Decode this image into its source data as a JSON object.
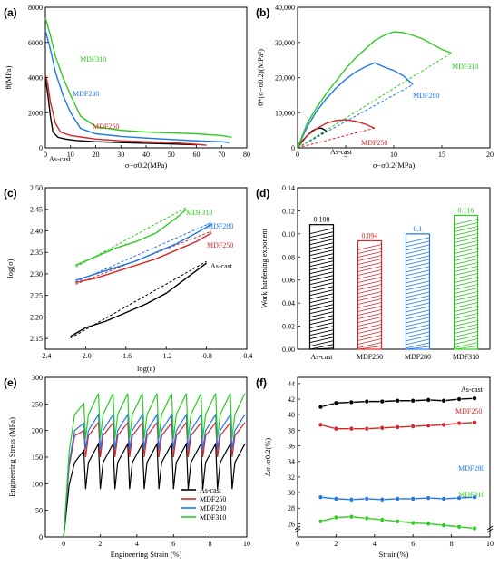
{
  "colors": {
    "As-cast": "#000000",
    "MDF250": "#d62728",
    "MDF280": "#1f77e8",
    "MDF310": "#2ecc1f"
  },
  "chart_data": [
    {
      "panel": "(a)",
      "type": "line",
      "xlabel": "σ−σ0.2(MPa)",
      "ylabel": "θ(MPa)",
      "xlim": [
        0,
        80
      ],
      "ylim": [
        0,
        8000
      ],
      "xticks": [
        "0",
        "10",
        "20",
        "30",
        "40",
        "50",
        "60",
        "70",
        "80"
      ],
      "yticks": [
        "0",
        "2000",
        "4000",
        "6000",
        "8000"
      ],
      "annotations": [
        "MDF310",
        "MDF280",
        "MDF250",
        "As-cast"
      ],
      "series": [
        {
          "name": "As-cast",
          "x": [
            0,
            1,
            2,
            3,
            5,
            8,
            12,
            20,
            30,
            40,
            50,
            60
          ],
          "y": [
            4000,
            3000,
            1800,
            900,
            600,
            500,
            420,
            350,
            300,
            260,
            220,
            180
          ]
        },
        {
          "name": "MDF250",
          "x": [
            0,
            1,
            2,
            4,
            6,
            10,
            15,
            20,
            30,
            40,
            50,
            60,
            64
          ],
          "y": [
            4200,
            3600,
            2600,
            1400,
            900,
            700,
            600,
            500,
            400,
            350,
            300,
            200,
            150
          ]
        },
        {
          "name": "MDF280",
          "x": [
            0,
            2,
            4,
            7,
            10,
            14,
            20,
            30,
            40,
            50,
            60,
            70,
            73
          ],
          "y": [
            6700,
            5600,
            4300,
            3000,
            2000,
            1100,
            800,
            650,
            560,
            480,
            400,
            350,
            300
          ]
        },
        {
          "name": "MDF310",
          "x": [
            0,
            2,
            4,
            7,
            10,
            14,
            20,
            30,
            40,
            50,
            60,
            70,
            74
          ],
          "y": [
            7400,
            6400,
            5200,
            4000,
            3000,
            1800,
            1200,
            1000,
            900,
            850,
            800,
            700,
            600
          ]
        }
      ]
    },
    {
      "panel": "(b)",
      "type": "line",
      "xlabel": "σ−σ0.2(MPa)",
      "ylabel": "θ*(σ−σ0.2)(MPa²)",
      "xlim": [
        0,
        20
      ],
      "ylim": [
        0,
        40000
      ],
      "xticks": [
        "0",
        "5",
        "10",
        "15",
        "20"
      ],
      "yticks": [
        "0",
        "10,000",
        "20,000",
        "30,000",
        "40,000"
      ],
      "annotations": [
        "MDF310",
        "MDF280",
        "MDF250",
        "As-cast"
      ],
      "series": [
        {
          "name": "As-cast",
          "x": [
            0,
            0.5,
            1,
            1.5,
            2,
            2.5,
            3
          ],
          "y": [
            0,
            2000,
            3500,
            4800,
            5500,
            5600,
            4800
          ]
        },
        {
          "name": "MDF250",
          "x": [
            0,
            1,
            2,
            3,
            4,
            5,
            6,
            7,
            8
          ],
          "y": [
            0,
            3500,
            5500,
            7000,
            7800,
            8000,
            7600,
            6800,
            5600
          ]
        },
        {
          "name": "MDF280",
          "x": [
            0,
            1,
            2,
            3,
            4,
            5,
            6,
            7,
            8,
            9,
            10,
            11,
            12
          ],
          "y": [
            0,
            6000,
            10500,
            14000,
            17000,
            19500,
            21500,
            23000,
            24200,
            23000,
            22000,
            20500,
            18000
          ]
        },
        {
          "name": "MDF310",
          "x": [
            0,
            1,
            2,
            3,
            4,
            5,
            6,
            7,
            8,
            9,
            10,
            11,
            12,
            13,
            14,
            15,
            16
          ],
          "y": [
            0,
            7000,
            11500,
            15500,
            19000,
            22500,
            25500,
            28000,
            30500,
            32000,
            33000,
            32800,
            32000,
            31000,
            29500,
            28000,
            27000
          ]
        }
      ]
    },
    {
      "panel": "(c)",
      "type": "line",
      "xlabel": "log(ε)",
      "ylabel": "log(σ)",
      "xlim": [
        -2.4,
        -0.4
      ],
      "ylim": [
        2.125,
        2.5
      ],
      "xticks": [
        "-2.4",
        "-2.0",
        "-1.6",
        "-1.2",
        "-0.8",
        "-0.4"
      ],
      "yticks": [
        "2.15",
        "2.20",
        "2.25",
        "2.30",
        "2.35",
        "2.40",
        "2.45",
        "2.50"
      ],
      "annotations": [
        "MDF310",
        "MDF280",
        "MDF250",
        "As-cast"
      ],
      "series": [
        {
          "name": "As-cast",
          "x": [
            -2.15,
            -2.0,
            -1.8,
            -1.6,
            -1.4,
            -1.2,
            -1.0,
            -0.8
          ],
          "y": [
            2.155,
            2.175,
            2.19,
            2.21,
            2.23,
            2.255,
            2.29,
            2.325
          ]
        },
        {
          "name": "MDF250",
          "x": [
            -2.1,
            -1.9,
            -1.7,
            -1.5,
            -1.3,
            -1.1,
            -0.9,
            -0.75
          ],
          "y": [
            2.28,
            2.29,
            2.305,
            2.32,
            2.335,
            2.355,
            2.375,
            2.395
          ]
        },
        {
          "name": "MDF280",
          "x": [
            -2.1,
            -1.9,
            -1.7,
            -1.5,
            -1.3,
            -1.1,
            -0.9,
            -0.75
          ],
          "y": [
            2.285,
            2.3,
            2.315,
            2.33,
            2.35,
            2.37,
            2.395,
            2.415
          ]
        },
        {
          "name": "MDF310",
          "x": [
            -2.1,
            -1.9,
            -1.7,
            -1.5,
            -1.3,
            -1.1,
            -1.0
          ],
          "y": [
            2.32,
            2.34,
            2.36,
            2.375,
            2.395,
            2.43,
            2.45
          ]
        }
      ]
    },
    {
      "panel": "(d)",
      "type": "bar",
      "ylabel": "Work hardening exponent",
      "ylim": [
        0,
        0.14
      ],
      "yticks": [
        "0.00",
        "0.02",
        "0.04",
        "0.06",
        "0.08",
        "0.10",
        "0.12",
        "0.14"
      ],
      "categories": [
        "As-cast",
        "MDF250",
        "MDF280",
        "MDF310"
      ],
      "values": [
        0.108,
        0.094,
        0.1,
        0.116
      ],
      "value_labels": [
        "0.108",
        "0.094",
        "0.1",
        "0.116"
      ]
    },
    {
      "panel": "(e)",
      "type": "line",
      "xlabel": "Engineering Strain (%)",
      "ylabel": "Engineering Stress (MPa)",
      "xlim": [
        -1,
        10
      ],
      "ylim": [
        0,
        300
      ],
      "xticks": [
        "0",
        "2",
        "4",
        "6",
        "8",
        "10"
      ],
      "yticks": [
        "0",
        "50",
        "100",
        "150",
        "200",
        "250",
        "300"
      ],
      "legend": "bottom-right",
      "series": [
        {
          "name": "As-cast",
          "peak": 175,
          "yield": 140,
          "drop": 90
        },
        {
          "name": "MDF250",
          "peak": 215,
          "yield": 190,
          "drop": 150
        },
        {
          "name": "MDF280",
          "peak": 230,
          "yield": 200,
          "drop": 165
        },
        {
          "name": "MDF310",
          "peak": 270,
          "yield": 230,
          "drop": 185
        }
      ]
    },
    {
      "panel": "(f)",
      "type": "line",
      "xlabel": "Strain(%)",
      "ylabel": "Δσ /σ0.2(%)",
      "xlim": [
        0,
        10
      ],
      "xticks": [
        "0",
        "2",
        "4",
        "6",
        "8",
        "10"
      ],
      "yticks": [
        "26",
        "28",
        "30",
        "32",
        "34",
        "36",
        "38",
        "40",
        "42",
        "44"
      ],
      "annotations": [
        "As-cast",
        "MDF250",
        "MDF280",
        "MDF310"
      ],
      "series": [
        {
          "name": "As-cast",
          "x": [
            1.2,
            2,
            2.8,
            3.6,
            4.4,
            5.2,
            6,
            6.8,
            7.6,
            8.4,
            9.2
          ],
          "y": [
            41,
            41.5,
            41.6,
            41.7,
            41.7,
            41.8,
            41.8,
            41.9,
            41.8,
            42,
            42.1
          ]
        },
        {
          "name": "MDF250",
          "x": [
            1.2,
            2,
            2.8,
            3.6,
            4.4,
            5.2,
            6,
            6.8,
            7.6,
            8.4,
            9.2
          ],
          "y": [
            38.7,
            38.2,
            38.2,
            38.2,
            38.3,
            38.4,
            38.5,
            38.6,
            38.7,
            38.9,
            39
          ]
        },
        {
          "name": "MDF280",
          "x": [
            1.2,
            2,
            2.8,
            3.6,
            4.4,
            5.2,
            6,
            6.8,
            7.6,
            8.4,
            9.2
          ],
          "y": [
            29.4,
            29.2,
            29.1,
            29.2,
            29.1,
            29.2,
            29.2,
            29.3,
            29.2,
            29.3,
            29.4
          ]
        },
        {
          "name": "MDF310",
          "x": [
            1.2,
            2,
            2.8,
            3.6,
            4.4,
            5.2,
            6,
            6.8,
            7.6,
            8.4,
            9.2
          ],
          "y": [
            26.3,
            26.8,
            26.9,
            26.7,
            26.5,
            26.3,
            26.1,
            26,
            25.8,
            25.6,
            25.4
          ]
        }
      ]
    }
  ]
}
